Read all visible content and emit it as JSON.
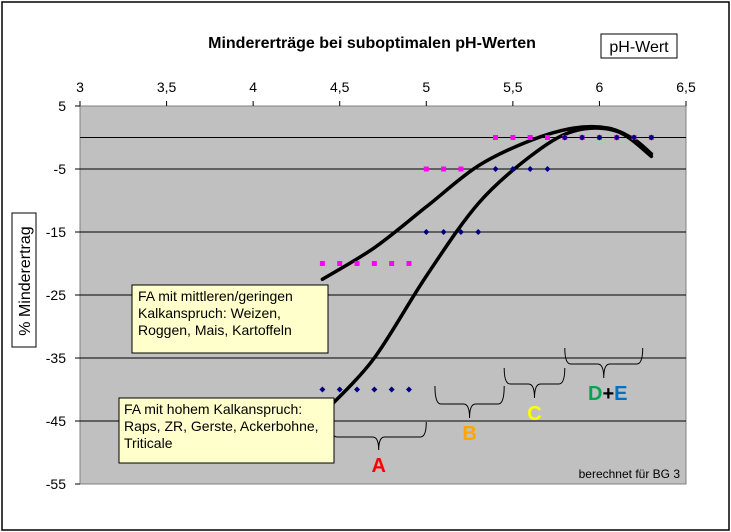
{
  "chart_data": {
    "type": "scatter",
    "title": "Mindererträge bei suboptimalen pH-Werten",
    "x_axis_label": "pH-Wert",
    "y_axis_label": "% Minderertrag",
    "x_ticks": [
      "3",
      "3,5",
      "4",
      "4,5",
      "5",
      "5,5",
      "6",
      "6,5"
    ],
    "y_ticks": [
      "5",
      "-5",
      "-15",
      "-25",
      "-35",
      "-45",
      "-55"
    ],
    "xlim": [
      3,
      6.5
    ],
    "ylim": [
      -55,
      5
    ],
    "x_axis_position": "top",
    "grid": "horizontal",
    "series": [
      {
        "color": "#ff00ff",
        "marker": "square",
        "points": [
          [
            4.4,
            -20
          ],
          [
            4.5,
            -20
          ],
          [
            4.6,
            -20
          ],
          [
            4.7,
            -20
          ],
          [
            4.8,
            -20
          ],
          [
            4.9,
            -20
          ],
          [
            5.0,
            -5
          ],
          [
            5.1,
            -5
          ],
          [
            5.2,
            -5
          ],
          [
            5.4,
            0
          ],
          [
            5.5,
            0
          ],
          [
            5.6,
            0
          ],
          [
            5.7,
            0
          ],
          [
            5.8,
            0
          ],
          [
            5.9,
            0
          ],
          [
            6.0,
            0
          ],
          [
            6.1,
            0
          ],
          [
            6.2,
            0
          ],
          [
            6.3,
            0
          ]
        ]
      },
      {
        "color": "#000080",
        "marker": "diamond",
        "points": [
          [
            4.4,
            -40
          ],
          [
            4.5,
            -40
          ],
          [
            4.6,
            -40
          ],
          [
            4.7,
            -40
          ],
          [
            4.8,
            -40
          ],
          [
            4.9,
            -40
          ],
          [
            5.0,
            -15
          ],
          [
            5.1,
            -15
          ],
          [
            5.2,
            -15
          ],
          [
            5.3,
            -15
          ],
          [
            5.4,
            -5
          ],
          [
            5.5,
            -5
          ],
          [
            5.6,
            -5
          ],
          [
            5.7,
            -5
          ],
          [
            5.8,
            0
          ],
          [
            5.9,
            0
          ],
          [
            6.0,
            0
          ],
          [
            6.1,
            0
          ],
          [
            6.2,
            0
          ],
          [
            6.3,
            0
          ]
        ]
      }
    ],
    "trend_curves": [
      {
        "color": "#000000",
        "points": [
          [
            4.4,
            -22.5
          ],
          [
            4.7,
            -17.5
          ],
          [
            5.0,
            -11
          ],
          [
            5.3,
            -4.5
          ],
          [
            5.6,
            -0.5
          ],
          [
            5.85,
            1.5
          ],
          [
            6.05,
            1.5
          ],
          [
            6.2,
            -0.3
          ],
          [
            6.3,
            -2.6
          ]
        ]
      },
      {
        "color": "#000000",
        "points": [
          [
            4.45,
            -42.5
          ],
          [
            4.7,
            -35
          ],
          [
            5.0,
            -22
          ],
          [
            5.3,
            -10.5
          ],
          [
            5.6,
            -3
          ],
          [
            5.85,
            1
          ],
          [
            6.1,
            1
          ],
          [
            6.3,
            -3
          ]
        ]
      }
    ],
    "annotations": {
      "box_medium": [
        "FA mit mittleren/geringen",
        "Kalkanspruch: Weizen,",
        "Roggen, Mais, Kartoffeln"
      ],
      "box_high": [
        "FA mit hohem Kalkanspruch:",
        "Raps, ZR, Gerste, Ackerbohne,",
        "Triticale"
      ],
      "source": "berechnet für BG 3"
    },
    "groups": [
      {
        "label": "A",
        "color": "#ff0000",
        "x_range": [
          4.45,
          5.0
        ]
      },
      {
        "label": "B",
        "color": "#ffa500",
        "x_range": [
          5.05,
          5.45
        ]
      },
      {
        "label": "C",
        "color": "#ffff00",
        "x_range": [
          5.45,
          5.8
        ]
      },
      {
        "label_parts": [
          "D",
          "+",
          "E"
        ],
        "colors": [
          "#00a651",
          "#000000",
          "#0070c0"
        ],
        "x_range": [
          5.8,
          6.25
        ]
      }
    ]
  }
}
